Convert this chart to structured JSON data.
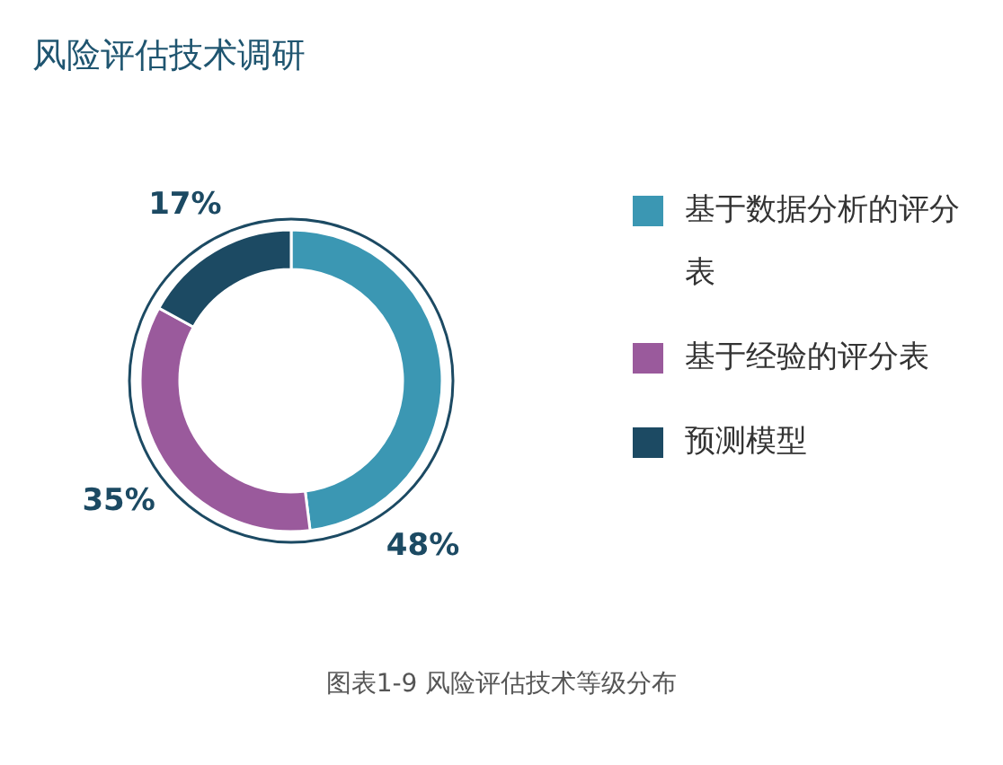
{
  "chart_data": {
    "type": "donut",
    "title": "风险评估技术调研",
    "categories": [
      "基于数据分析的评分表",
      "基于经验的评分表",
      "预测模型"
    ],
    "values": [
      48,
      35,
      17
    ],
    "colors": [
      "#3b97b3",
      "#9a5a9c",
      "#1c4a63"
    ],
    "value_labels": [
      "48%",
      "35%",
      "17%"
    ],
    "legend": "right",
    "annotations": [
      "图表1-9 风险评估技术等级分布"
    ]
  }
}
